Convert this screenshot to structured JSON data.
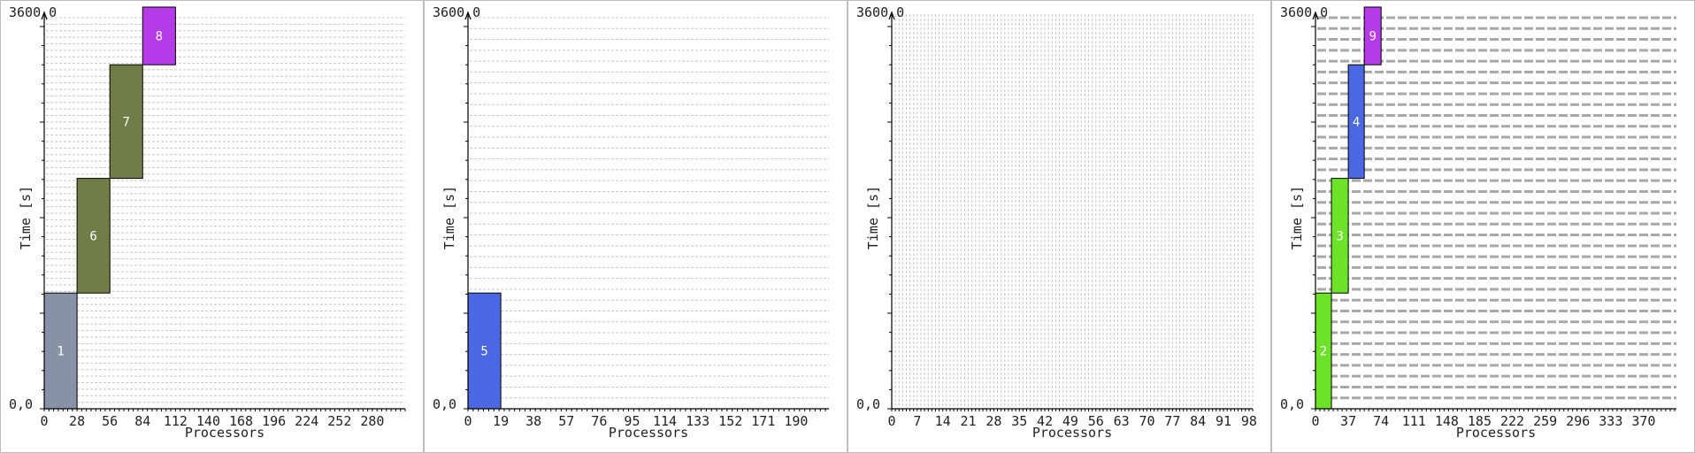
{
  "chart_data": [
    {
      "type": "gantt",
      "xlabel": "Processors",
      "ylabel": "Time [s]",
      "ymax_label": "3600,0",
      "origin_label": "0,0",
      "xlim": [
        0,
        308
      ],
      "ylim": [
        0,
        3600
      ],
      "x_ticks": [
        0,
        28,
        56,
        84,
        112,
        140,
        168,
        196,
        224,
        252,
        280
      ],
      "grid_rows": 60,
      "grid_style": "light",
      "jobs": [
        {
          "label": "1",
          "proc_start": 0,
          "proc_end": 28,
          "t_start": 0,
          "t_end": 1090,
          "color": "#8792a6"
        },
        {
          "label": "6",
          "proc_start": 28,
          "proc_end": 56,
          "t_start": 1090,
          "t_end": 2170,
          "color": "#717d46"
        },
        {
          "label": "7",
          "proc_start": 56,
          "proc_end": 84,
          "t_start": 2170,
          "t_end": 3240,
          "color": "#717d46"
        },
        {
          "label": "8",
          "proc_start": 84,
          "proc_end": 112,
          "t_start": 3240,
          "t_end": 4230,
          "color": "#b63be8"
        }
      ]
    },
    {
      "type": "gantt",
      "xlabel": "Processors",
      "ylabel": "Time [s]",
      "ymax_label": "3600,0",
      "origin_label": "0,0",
      "xlim": [
        0,
        209
      ],
      "ylim": [
        0,
        3600
      ],
      "x_ticks": [
        0,
        19,
        38,
        57,
        76,
        95,
        114,
        133,
        152,
        171,
        190
      ],
      "grid_rows": 36,
      "grid_style": "light",
      "jobs": [
        {
          "label": "5",
          "proc_start": 0,
          "proc_end": 19,
          "t_start": 0,
          "t_end": 1090,
          "color": "#4b67e2"
        }
      ]
    },
    {
      "type": "gantt",
      "xlabel": "Processors",
      "ylabel": "Time [s]",
      "ymax_label": "3600,0",
      "origin_label": "0,0",
      "xlim": [
        0,
        99
      ],
      "ylim": [
        0,
        3600
      ],
      "x_ticks": [
        0,
        7,
        14,
        21,
        28,
        35,
        42,
        49,
        56,
        63,
        70,
        77,
        84,
        91,
        98
      ],
      "grid_rows": 0,
      "grid_cols": 99,
      "grid_style": "vertical",
      "jobs": []
    },
    {
      "type": "gantt",
      "xlabel": "Processors",
      "ylabel": "Time [s]",
      "ymax_label": "3600,0",
      "origin_label": "0,0",
      "xlim": [
        0,
        407
      ],
      "ylim": [
        0,
        3600
      ],
      "x_ticks": [
        0,
        37,
        74,
        111,
        148,
        185,
        222,
        259,
        296,
        333,
        370
      ],
      "grid_rows": 36,
      "grid_style": "dark",
      "jobs": [
        {
          "label": "2",
          "proc_start": 0,
          "proc_end": 18,
          "t_start": 0,
          "t_end": 1090,
          "color": "#6ce228"
        },
        {
          "label": "3",
          "proc_start": 18,
          "proc_end": 37,
          "t_start": 1090,
          "t_end": 2170,
          "color": "#6ce228"
        },
        {
          "label": "4",
          "proc_start": 37,
          "proc_end": 55,
          "t_start": 2170,
          "t_end": 3240,
          "color": "#4b67e2"
        },
        {
          "label": "9",
          "proc_start": 55,
          "proc_end": 74,
          "t_start": 3240,
          "t_end": 4230,
          "color": "#b63be8"
        }
      ]
    }
  ]
}
